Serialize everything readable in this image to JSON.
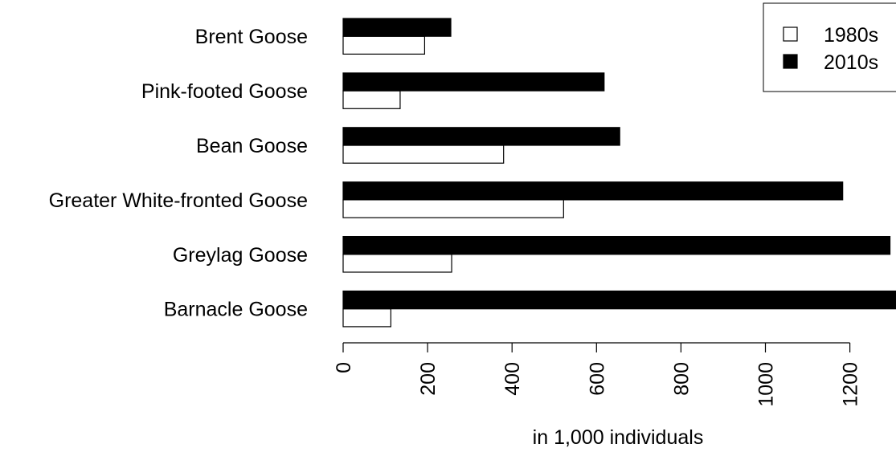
{
  "chart_data": {
    "type": "bar",
    "orientation": "horizontal",
    "categories": [
      "Brent Goose",
      "Pink-footed Goose",
      "Bean Goose",
      "Greater White-fronted Goose",
      "Greylag Goose",
      "Barnacle Goose"
    ],
    "series": [
      {
        "name": "1980s",
        "values": [
          193,
          135,
          380,
          522,
          257,
          113
        ],
        "fill": "#ffffff",
        "stroke": "#000000"
      },
      {
        "name": "2010s",
        "values": [
          255,
          618,
          655,
          1183,
          1295,
          1320
        ],
        "fill": "#000000",
        "stroke": "#000000"
      }
    ],
    "xlabel": "in 1,000 individuals",
    "ylabel": "",
    "title": "",
    "xticks": [
      0,
      200,
      400,
      600,
      800,
      1000,
      1200
    ],
    "xlim": [
      0,
      1300
    ],
    "grid": false,
    "legend": "top-right"
  }
}
